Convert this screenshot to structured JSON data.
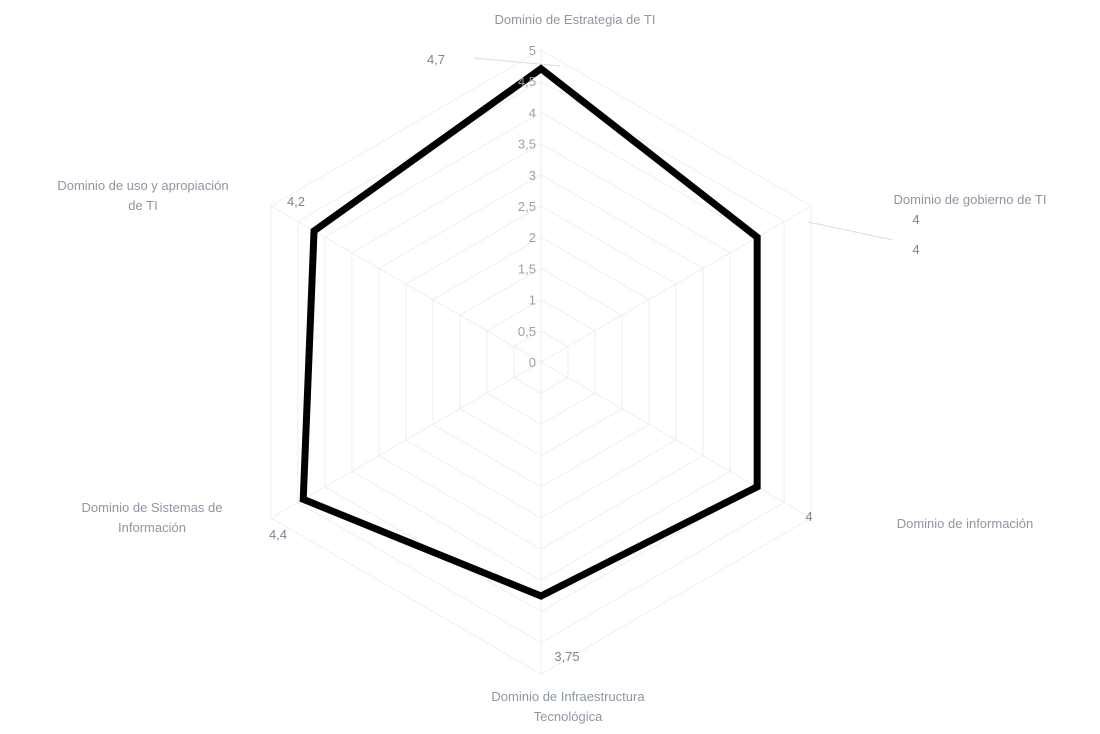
{
  "chart_data": {
    "type": "radar",
    "title": "",
    "categories": [
      [
        "Dominio de Estrategia de TI"
      ],
      [
        "Dominio de gobierno de TI"
      ],
      [
        "Dominio de información"
      ],
      [
        "Dominio de Infraestructura",
        "Tecnológica"
      ],
      [
        "Dominio de Sistemas de",
        "Información"
      ],
      [
        "Dominio de uso y apropiación",
        "de TI"
      ]
    ],
    "series": [
      {
        "values": [
          4.7,
          4,
          4,
          3.75,
          4.4,
          4.2
        ],
        "value_labels": [
          "4,7",
          "4",
          "4",
          "3,75",
          "4,4",
          "4,2"
        ],
        "color": "#000000"
      }
    ],
    "extra_labels": [
      "4"
    ],
    "r_ticks": [
      0,
      0.5,
      1,
      1.5,
      2,
      2.5,
      3,
      3.5,
      4,
      4.5,
      5
    ],
    "r_tick_labels": [
      "0",
      "0,5",
      "1",
      "1,5",
      "2",
      "2,5",
      "3",
      "3,5",
      "4",
      "4,5",
      "5"
    ],
    "r_range": [
      0,
      5
    ],
    "grid": true,
    "legend": "none"
  }
}
